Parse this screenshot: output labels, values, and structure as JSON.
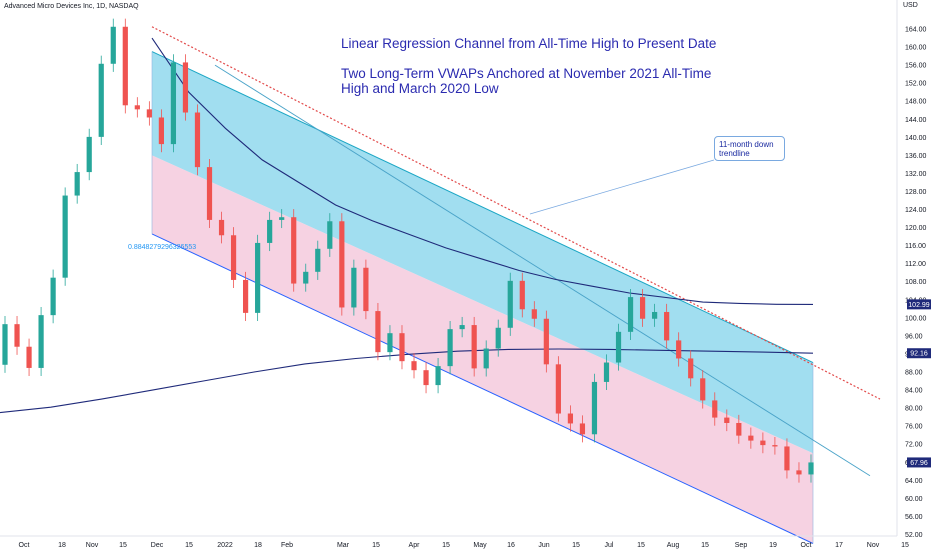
{
  "header": {
    "symbol": "Advanced Micro Devices Inc, 1D, NASDAQ",
    "currency": "USD"
  },
  "annotations": {
    "title_line1": "Linear Regression Channel from All-Time High to Present Date",
    "title_line2": "Two Long-Term VWAPs Anchored at November 2021 All-Time",
    "title_line3": "High and March 2020 Low",
    "callout": "11-month down trendline",
    "channel_coefficient": "0.8848279296326553"
  },
  "colors": {
    "bullish": "#26a69a",
    "bearish": "#ef5350",
    "channel_upper_fill": "#63c8e6",
    "channel_lower_fill": "#f3c3d8",
    "vwap": "#1f2a7a",
    "trendline": "#e24a4a",
    "regression": "#2962ff",
    "price_tag": "#1f2a7a"
  },
  "chart_data": {
    "type": "candlestick",
    "yaxis_ticks": [
      52,
      56,
      60,
      64,
      68,
      72,
      76,
      80,
      84,
      88,
      92,
      96,
      100,
      104,
      108,
      112,
      116,
      120,
      124,
      128,
      132,
      136,
      140,
      144,
      148,
      152,
      156,
      160,
      164
    ],
    "xaxis_labels": [
      "Oct",
      "18",
      "Nov",
      "15",
      "Dec",
      "15",
      "2022",
      "18",
      "Feb",
      "Mar",
      "15",
      "Apr",
      "15",
      "May",
      "16",
      "Jun",
      "15",
      "Jul",
      "15",
      "Aug",
      "15",
      "Sep",
      "19",
      "Oct",
      "17",
      "Nov",
      "15"
    ],
    "price_labels": {
      "last": "67.96",
      "vwap_high": "102.99",
      "vwap_low": "92.16"
    },
    "ylim": [
      49,
      166
    ],
    "candles": [
      [
        89.6,
        98.6
      ],
      [
        98.6,
        93.6
      ],
      [
        93.6,
        88.9
      ],
      [
        88.9,
        100.6
      ],
      [
        100.6,
        108.9
      ],
      [
        108.9,
        127.1
      ],
      [
        127.1,
        132.3
      ],
      [
        132.3,
        140.1
      ],
      [
        140.1,
        156.3
      ],
      [
        156.3,
        164.5
      ],
      [
        164.5,
        147.1
      ],
      [
        147.1,
        146.2
      ],
      [
        146.2,
        144.4
      ],
      [
        144.4,
        138.5
      ],
      [
        138.5,
        156.6
      ],
      [
        156.6,
        145.5
      ],
      [
        145.5,
        133.4
      ],
      [
        133.4,
        121.7
      ],
      [
        121.7,
        118.3
      ],
      [
        118.3,
        108.4
      ],
      [
        108.4,
        101.1
      ],
      [
        101.1,
        116.6
      ],
      [
        116.6,
        121.7
      ],
      [
        121.7,
        122.3
      ],
      [
        122.3,
        107.6
      ],
      [
        107.6,
        110.2
      ],
      [
        110.2,
        115.3
      ],
      [
        115.3,
        121.4
      ],
      [
        121.4,
        102.3
      ],
      [
        102.3,
        111.1
      ],
      [
        111.1,
        101.5
      ],
      [
        101.5,
        92.4
      ],
      [
        92.4,
        96.6
      ],
      [
        96.6,
        90.4
      ],
      [
        90.4,
        88.4
      ],
      [
        88.4,
        85.1
      ],
      [
        85.1,
        89.3
      ],
      [
        89.3,
        97.5
      ],
      [
        97.5,
        98.4
      ],
      [
        98.4,
        88.8
      ],
      [
        88.8,
        93.2
      ],
      [
        93.2,
        97.8
      ],
      [
        97.8,
        108.2
      ],
      [
        108.2,
        101.9
      ],
      [
        101.9,
        99.8
      ],
      [
        99.8,
        89.7
      ],
      [
        89.7,
        78.8
      ],
      [
        78.8,
        76.6
      ],
      [
        76.6,
        74.2
      ],
      [
        74.2,
        85.8
      ],
      [
        85.8,
        90.1
      ],
      [
        90.1,
        96.9
      ],
      [
        96.9,
        104.6
      ],
      [
        104.6,
        99.8
      ],
      [
        99.8,
        101.3
      ],
      [
        101.3,
        95.0
      ],
      [
        95.0,
        91.0
      ],
      [
        91.0,
        86.6
      ],
      [
        86.6,
        81.7
      ],
      [
        81.7,
        77.9
      ],
      [
        77.9,
        76.7
      ],
      [
        76.7,
        73.9
      ],
      [
        73.9,
        72.8
      ],
      [
        72.8,
        71.8
      ],
      [
        71.8,
        71.5
      ],
      [
        71.5,
        66.2
      ],
      [
        66.2,
        65.3
      ],
      [
        65.3,
        67.96
      ]
    ],
    "vwap_high_series": [
      162.0,
      150.0,
      142.0,
      135.0,
      130.0,
      125.0,
      121.5,
      118.5,
      115.5,
      113.0,
      110.5,
      108.5,
      107.0,
      105.5,
      104.5,
      103.5,
      103.2,
      103.0,
      102.99
    ],
    "vwap_low_series": [
      79.0,
      80.2,
      82.0,
      84.0,
      86.0,
      88.0,
      89.8,
      91.0,
      91.9,
      92.6,
      93.0,
      93.1,
      93.0,
      92.8,
      92.6,
      92.4,
      92.16
    ],
    "regression_channel": {
      "start_high": 159.0,
      "start_mid": 136.0,
      "start_low": 118.6,
      "end_high": 90.1,
      "end_mid": 70.0,
      "end_low": 50.0
    },
    "trendline": {
      "start": 164.5,
      "end": 82.0
    }
  }
}
